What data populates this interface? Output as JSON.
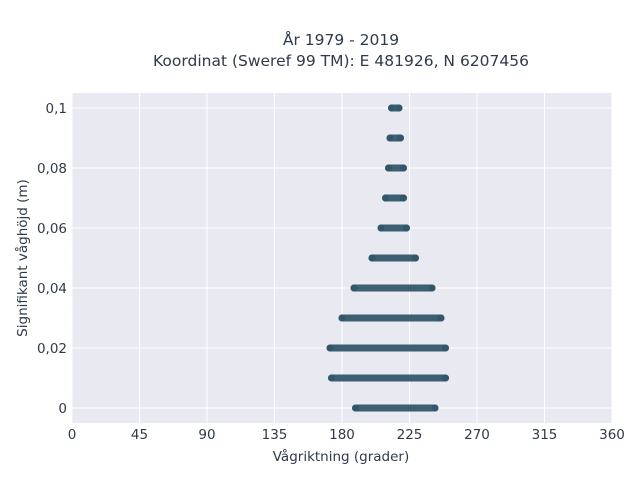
{
  "chart_data": {
    "type": "scatter",
    "title": "År 1979 - 2019",
    "subtitle": "Koordinat (Sweref 99 TM): E 481926, N 6207456",
    "xlabel": "Vågriktning (grader)",
    "ylabel": "Signifikant våghöjd (m)",
    "xlim": [
      0,
      360
    ],
    "ylim": [
      -0.005,
      0.105
    ],
    "x_ticks": [
      0,
      45,
      90,
      135,
      180,
      225,
      270,
      315,
      360
    ],
    "x_tick_labels": [
      "0",
      "45",
      "90",
      "135",
      "180",
      "225",
      "270",
      "315",
      "360"
    ],
    "y_ticks": [
      0,
      0.02,
      0.04,
      0.06,
      0.08,
      0.1
    ],
    "y_tick_labels": [
      "0",
      "0,02",
      "0,04",
      "0,06",
      "0,08",
      "0,1"
    ],
    "grid": true,
    "legend": "none",
    "marker_color": "#2f5468",
    "plot_bg": "#e9e9f2",
    "bands": [
      {
        "height": 0.0,
        "x_min": 189,
        "x_max": 242
      },
      {
        "height": 0.01,
        "x_min": 173,
        "x_max": 249
      },
      {
        "height": 0.02,
        "x_min": 172,
        "x_max": 249
      },
      {
        "height": 0.03,
        "x_min": 180,
        "x_max": 246
      },
      {
        "height": 0.04,
        "x_min": 188,
        "x_max": 240
      },
      {
        "height": 0.05,
        "x_min": 200,
        "x_max": 229
      },
      {
        "height": 0.06,
        "x_min": 206,
        "x_max": 223
      },
      {
        "height": 0.07,
        "x_min": 209,
        "x_max": 221
      },
      {
        "height": 0.08,
        "x_min": 211,
        "x_max": 221
      },
      {
        "height": 0.09,
        "x_min": 212,
        "x_max": 219
      },
      {
        "height": 0.1,
        "x_min": 213,
        "x_max": 218
      }
    ]
  }
}
